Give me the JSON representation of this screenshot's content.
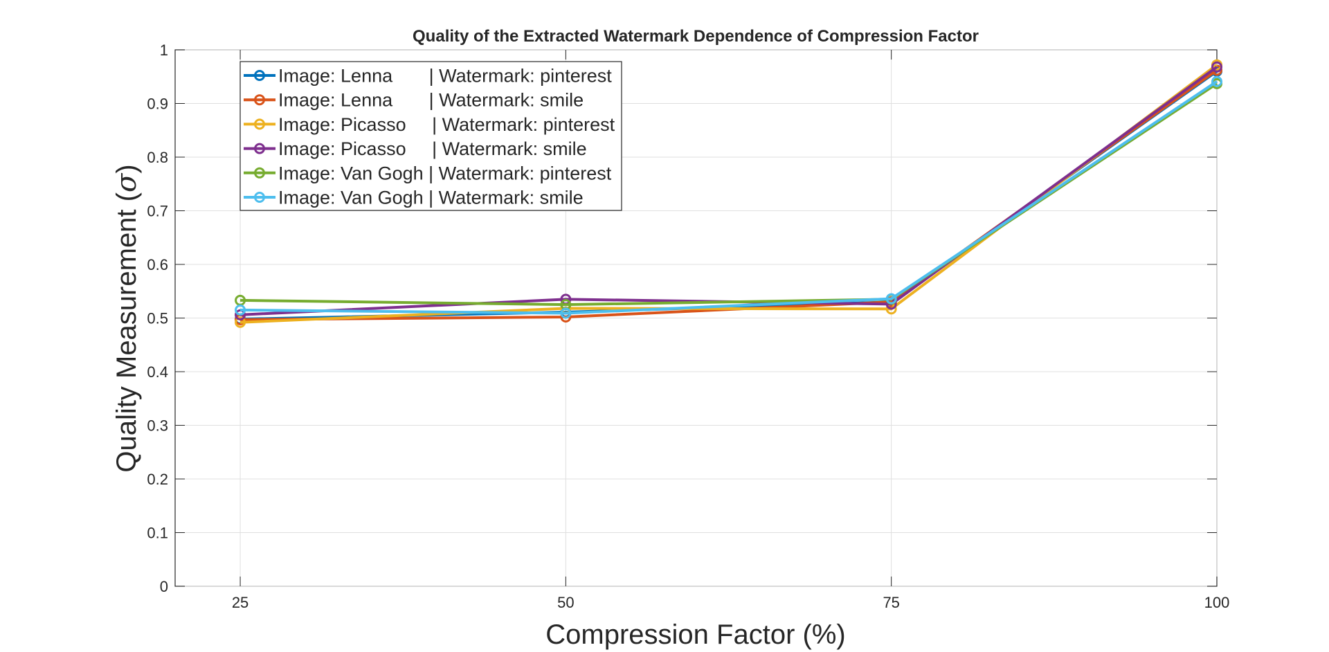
{
  "chart_data": {
    "type": "line",
    "title": "Quality of the Extracted Watermark Dependence of Compression Factor",
    "xlabel": "Compression Factor (%)",
    "ylabel": "Quality Measurement (",
    "ylabel_symbol": "σ",
    "ylabel_close": ")",
    "x": [
      25,
      50,
      75,
      100
    ],
    "xlim": [
      20,
      100
    ],
    "ylim": [
      0,
      1
    ],
    "x_ticks": [
      "25",
      "50",
      "75",
      "100"
    ],
    "y_ticks": [
      "0",
      "0.1",
      "0.2",
      "0.3",
      "0.4",
      "0.5",
      "0.6",
      "0.7",
      "0.8",
      "0.9",
      "1"
    ],
    "grid": true,
    "legend_position": "top-left",
    "series": [
      {
        "name": "Image: Lenna       | Watermark: pinterest",
        "color": "#0072BD",
        "values": [
          0.498,
          0.511,
          0.53,
          0.96
        ]
      },
      {
        "name": "Image: Lenna       | Watermark: smile",
        "color": "#D95319",
        "values": [
          0.497,
          0.502,
          0.53,
          0.962
        ]
      },
      {
        "name": "Image: Picasso     | Watermark: pinterest",
        "color": "#EDB120",
        "values": [
          0.492,
          0.518,
          0.517,
          0.972
        ]
      },
      {
        "name": "Image: Picasso     | Watermark: smile",
        "color": "#7E2F8E",
        "values": [
          0.506,
          0.535,
          0.526,
          0.968
        ]
      },
      {
        "name": "Image: Van Gogh | Watermark: pinterest",
        "color": "#77AC30",
        "values": [
          0.533,
          0.525,
          0.535,
          0.937
        ]
      },
      {
        "name": "Image: Van Gogh | Watermark: smile",
        "color": "#4DBEEE",
        "values": [
          0.515,
          0.509,
          0.536,
          0.941
        ]
      }
    ]
  }
}
